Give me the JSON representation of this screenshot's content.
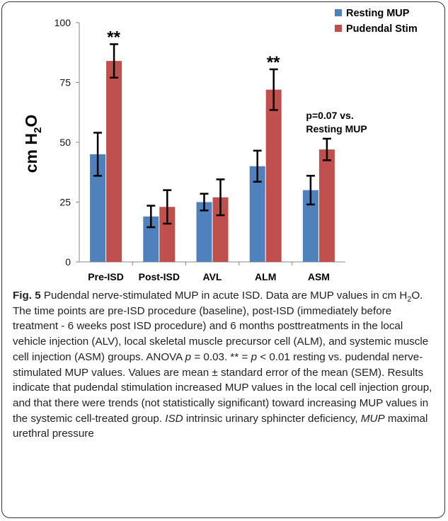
{
  "chart_data": {
    "type": "bar",
    "categories": [
      "Pre-ISD",
      "Post-ISD",
      "AVL",
      "ALM",
      "ASM"
    ],
    "series": [
      {
        "name": "Resting MUP",
        "color": "#4f81bd",
        "values": [
          45,
          19,
          25,
          40,
          30
        ],
        "errors": [
          9,
          4.5,
          3.5,
          6.5,
          6
        ]
      },
      {
        "name": "Pudendal Stim",
        "color": "#c0504d",
        "values": [
          84,
          23,
          27,
          72,
          47
        ],
        "errors": [
          7,
          7,
          7.5,
          8.5,
          4.5
        ]
      }
    ],
    "ylabel": "cm H",
    "ylabel_sub": "2",
    "ylabel_tail": "O",
    "ylim": [
      0,
      100
    ],
    "yticks": [
      "0",
      "25",
      "50",
      "75",
      "100"
    ],
    "legend_position": "top-right",
    "annotations": [
      {
        "category": "Pre-ISD",
        "text": "**"
      },
      {
        "category": "ALM",
        "text": "**"
      },
      {
        "category": "ASM",
        "lines": [
          "p=0.07 vs.",
          "Resting MUP"
        ]
      }
    ]
  },
  "caption": {
    "label": "Fig. 5",
    "s1": " Pudendal nerve-stimulated MUP in acute ISD. Data are MUP values in cm H",
    "sub": "2",
    "s2": "O. The time points are pre-ISD procedure (baseline), post-ISD (immediately before treatment - 6 weeks post ISD procedure) and 6 months posttreatments in the local vehicle injection (ALV), local skeletal muscle precursor cell (ALM), and systemic muscle cell injection (ASM) groups. ANOVA ",
    "p1": "p",
    "s3": " = 0.03. ** = ",
    "p2": "p",
    "s4": " < 0.01 resting vs. pudendal nerve-stimulated MUP values. Values are mean ± standard error of the mean (SEM). Results indicate that pudendal stimulation increased MUP values in the local cell injection group, and that there were trends (not statistically significant) toward increasing MUP values in the systemic cell-treated group. ",
    "isd": "ISD",
    "s5": " intrinsic urinary sphincter deficiency, ",
    "mup": "MUP",
    "s6": " maximal urethral pressure"
  }
}
